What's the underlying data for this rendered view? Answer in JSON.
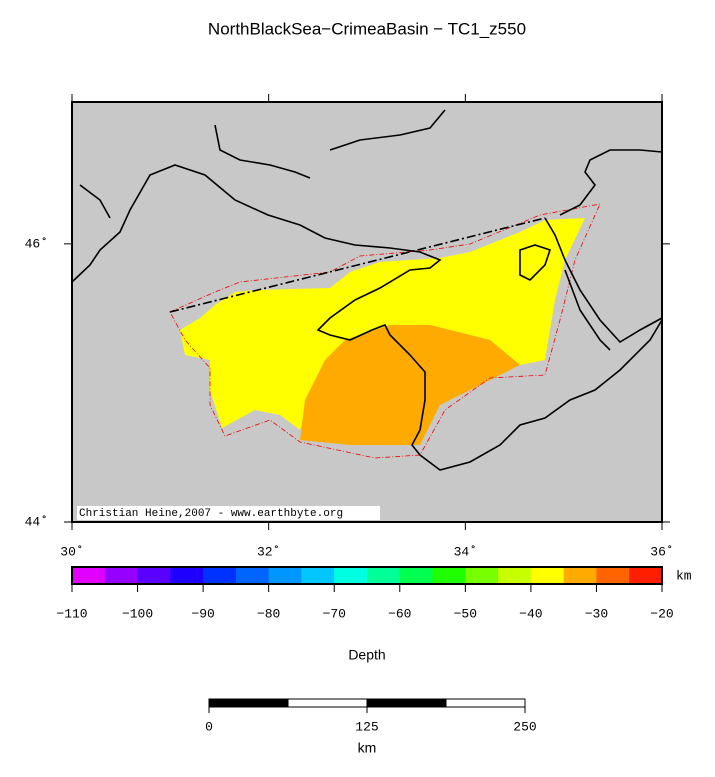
{
  "title": "NorthBlackSea−CrimeaBasin − TC1_z550",
  "map": {
    "xlim": [
      30,
      36
    ],
    "ylim": [
      44,
      47.02
    ],
    "xticks": [
      {
        "value": 30,
        "label": "30˚"
      },
      {
        "value": 32,
        "label": "32˚"
      },
      {
        "value": 34,
        "label": "34˚"
      },
      {
        "value": 36,
        "label": "36˚"
      }
    ],
    "yticks": [
      {
        "value": 44,
        "label": "44˚"
      },
      {
        "value": 46,
        "label": "46˚"
      }
    ],
    "credit": "Christian Heine,2007 - www.earthbyte.org"
  },
  "colorbar": {
    "lim": [
      -110,
      -20
    ],
    "colors": [
      "#e100ff",
      "#9600ff",
      "#5a00ff",
      "#1e00ff",
      "#0032ff",
      "#0064ff",
      "#0096ff",
      "#00c8ff",
      "#00ffe0",
      "#00ff96",
      "#00ff50",
      "#20ff00",
      "#78ff00",
      "#c8ff00",
      "#ffff00",
      "#ffaa00",
      "#ff6400",
      "#ff1e00"
    ],
    "ticks": [
      {
        "value": -110,
        "label": "−110"
      },
      {
        "value": -100,
        "label": "−100"
      },
      {
        "value": -90,
        "label": "−90"
      },
      {
        "value": -80,
        "label": "−80"
      },
      {
        "value": -70,
        "label": "−70"
      },
      {
        "value": -60,
        "label": "−60"
      },
      {
        "value": -50,
        "label": "−50"
      },
      {
        "value": -40,
        "label": "−40"
      },
      {
        "value": -30,
        "label": "−30"
      },
      {
        "value": -20,
        "label": "−20"
      }
    ],
    "unit": "km",
    "label": "Depth"
  },
  "scalebar": {
    "lim": [
      0,
      250
    ],
    "ticks": [
      0,
      125,
      250
    ],
    "unit": "km"
  }
}
